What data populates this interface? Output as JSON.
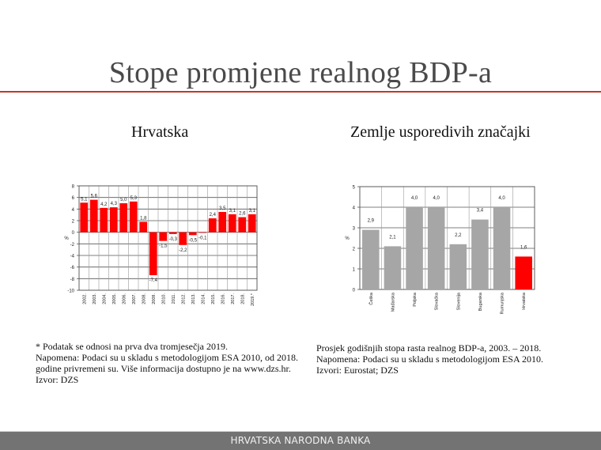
{
  "slide": {
    "title": "Stope promjene realnog BDP-a",
    "accent_color": "#c0392b",
    "footer": "HRVATSKA NARODNA BANKA"
  },
  "left_panel": {
    "subtitle": "Hrvatska",
    "notes": [
      "* Podatak se odnosi na prva dva tromjesečja 2019.",
      "Napomena: Podaci su u skladu s metodologijom ESA 2010, od 2018.",
      "godine privremeni su. Više informacija dostupno je na www.dzs.hr.",
      "Izvor: DZS"
    ]
  },
  "right_panel": {
    "subtitle": "Zemlje usporedivih značajki",
    "notes": [
      "Prosjek godišnjih stopa rasta realnog BDP-a, 2003. – 2018.",
      "Napomena: Podaci su u skladu s metodologijom ESA 2010.",
      "Izvori: Eurostat; DZS"
    ]
  },
  "chart_data": [
    {
      "type": "bar",
      "title": "Hrvatska",
      "xlabel": "",
      "ylabel": "%",
      "ylim": [
        -10,
        8
      ],
      "yticks": [
        8,
        6,
        4,
        2,
        0,
        -2,
        -4,
        -6,
        -8,
        -10
      ],
      "grid": true,
      "bar_color": "#ff0000",
      "categories": [
        "2002.",
        "2003.",
        "2004.",
        "2005.",
        "2006.",
        "2007.",
        "2008.",
        "2009.",
        "2010.",
        "2011.",
        "2012.",
        "2013.",
        "2014.",
        "2015.",
        "2016.",
        "2017.",
        "2018.",
        "2019.*"
      ],
      "values": [
        5.1,
        5.6,
        4.2,
        4.3,
        5.0,
        5.3,
        1.8,
        -7.4,
        -1.5,
        -0.3,
        -2.2,
        -0.5,
        -0.1,
        2.4,
        3.5,
        3.1,
        2.6,
        3.1
      ],
      "labels": [
        "5,1",
        "5,6",
        "4,2",
        "4,3",
        "5,0",
        "5,3",
        "1,8",
        "-7,4",
        "-1,5",
        "-0,3",
        "-2,2",
        "-0,5",
        "-0,1",
        "2,4",
        "3,5",
        "3,1",
        "2,6",
        "3,1"
      ]
    },
    {
      "type": "bar",
      "title": "Zemlje usporedivih značajki",
      "xlabel": "",
      "ylabel": "%",
      "ylim": [
        0,
        5
      ],
      "yticks": [
        5,
        4,
        3,
        2,
        1,
        0
      ],
      "grid": true,
      "bar_color": "#a6a6a6",
      "highlight_color": "#ff0000",
      "highlight_category": "Hrvatska",
      "categories": [
        "Češka",
        "Mađarska",
        "Poljska",
        "Slovačka",
        "Slovenija",
        "Bugarska",
        "Rumunjska",
        "Hrvatska"
      ],
      "values": [
        2.9,
        2.1,
        4.0,
        4.0,
        2.2,
        3.4,
        4.0,
        1.6
      ],
      "labels": [
        "2,9",
        "2,1",
        "4,0",
        "4,0",
        "2,2",
        "3,4",
        "4,0",
        "1,6"
      ]
    }
  ]
}
